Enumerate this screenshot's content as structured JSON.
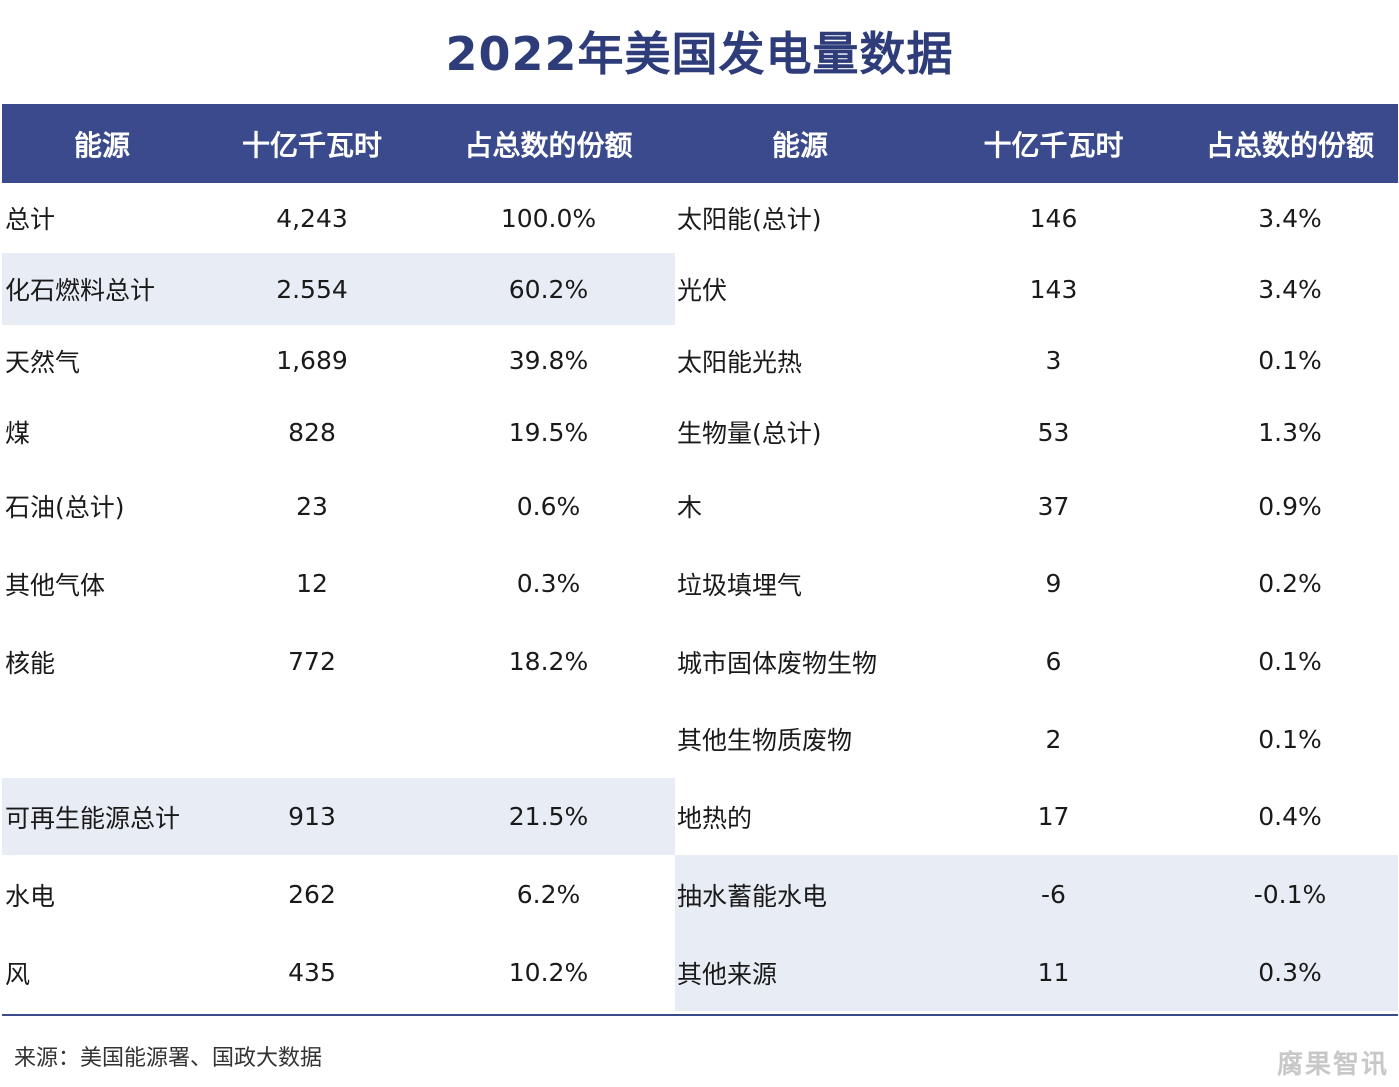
{
  "title": "2022年美国发电量数据",
  "chart_data": {
    "type": "table",
    "title": "2022年美国发电量数据",
    "columns": [
      "能源",
      "十亿千瓦时",
      "占总数的份额",
      "能源",
      "十亿千瓦时",
      "占总数的份额"
    ],
    "left_rows": [
      {
        "name": "总计",
        "twh": "4,243",
        "share": "100.0%",
        "shaded": false
      },
      {
        "name": "化石燃料总计",
        "twh": "2.554",
        "share": "60.2%",
        "shaded": true
      },
      {
        "name": "天然气",
        "twh": "1,689",
        "share": "39.8%",
        "shaded": false
      },
      {
        "name": "煤",
        "twh": "828",
        "share": "19.5%",
        "shaded": false
      },
      {
        "name": "石油(总计)",
        "twh": "23",
        "share": "0.6%",
        "shaded": false
      },
      {
        "name": "其他气体",
        "twh": "12",
        "share": "0.3%",
        "shaded": false
      },
      {
        "name": "核能",
        "twh": "772",
        "share": "18.2%",
        "shaded": false
      },
      {
        "name": "",
        "twh": "",
        "share": "",
        "shaded": false
      },
      {
        "name": "可再生能源总计",
        "twh": "913",
        "share": "21.5%",
        "shaded": true
      },
      {
        "name": "水电",
        "twh": "262",
        "share": "6.2%",
        "shaded": false
      },
      {
        "name": "风",
        "twh": "435",
        "share": "10.2%",
        "shaded": false
      }
    ],
    "right_rows": [
      {
        "name": "太阳能(总计)",
        "twh": "146",
        "share": "3.4%",
        "shaded": false
      },
      {
        "name": "光伏",
        "twh": "143",
        "share": "3.4%",
        "shaded": false
      },
      {
        "name": "太阳能光热",
        "twh": "3",
        "share": "0.1%",
        "shaded": false
      },
      {
        "name": "生物量(总计)",
        "twh": "53",
        "share": "1.3%",
        "shaded": false
      },
      {
        "name": "木",
        "twh": "37",
        "share": "0.9%",
        "shaded": false
      },
      {
        "name": "垃圾填埋气",
        "twh": "9",
        "share": "0.2%",
        "shaded": false
      },
      {
        "name": "城市固体废物生物",
        "twh": "6",
        "share": "0.1%",
        "shaded": false
      },
      {
        "name": "其他生物质废物",
        "twh": "2",
        "share": "0.1%",
        "shaded": false
      },
      {
        "name": "地热的",
        "twh": "17",
        "share": "0.4%",
        "shaded": false
      },
      {
        "name": "抽水蓄能水电",
        "twh": "-6",
        "share": "-0.1%",
        "shaded": true
      },
      {
        "name": "其他来源",
        "twh": "11",
        "share": "0.3%",
        "shaded": true
      }
    ]
  },
  "source": "来源：美国能源署、国政大数据",
  "watermark": "腐果智讯",
  "colors": {
    "header_bg": "#3a4a8c",
    "title": "#2e3d7a",
    "shade": "#e8ecf5"
  }
}
